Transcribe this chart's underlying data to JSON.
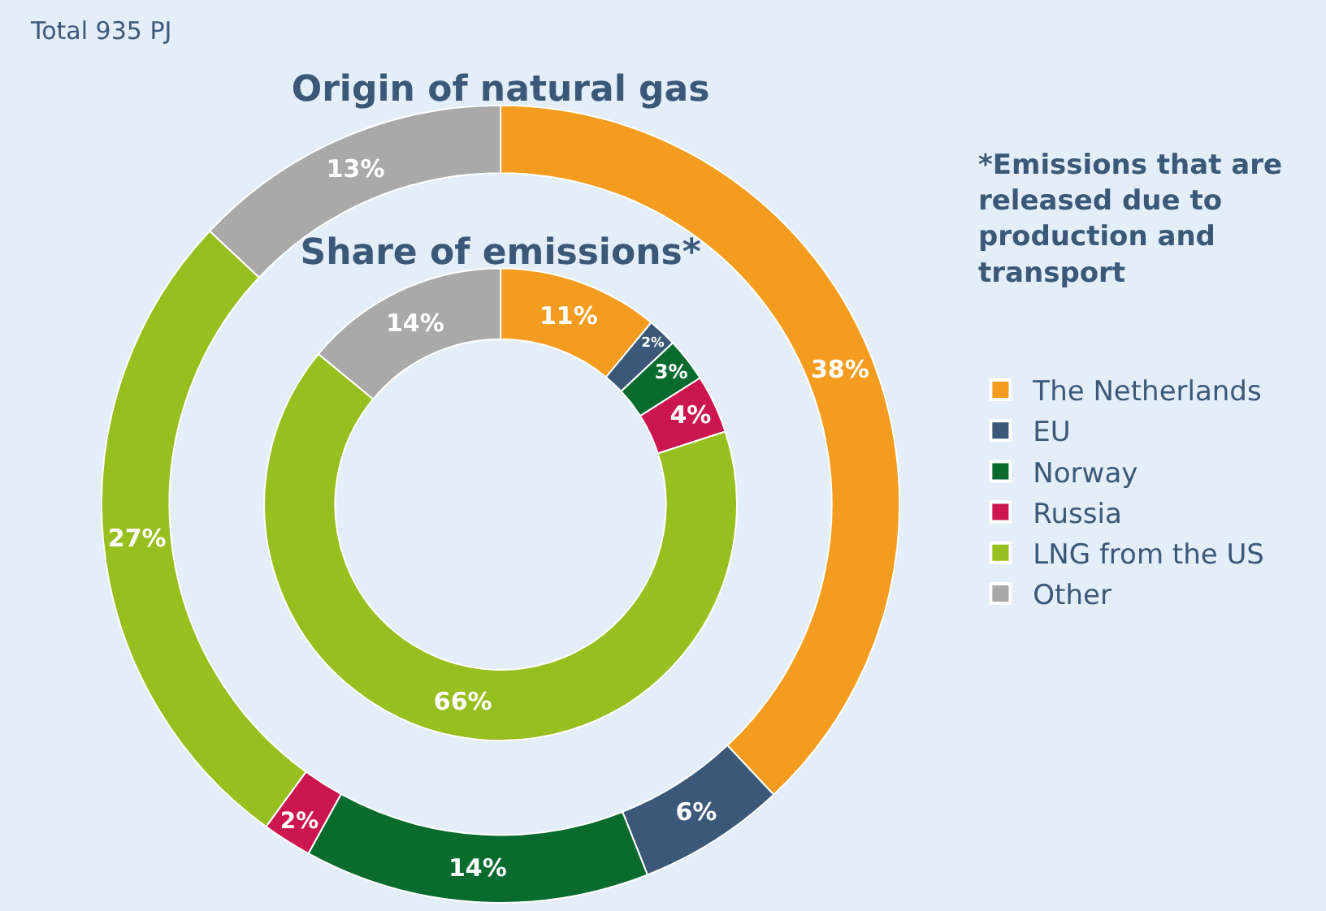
{
  "chart_data": {
    "type": "donut",
    "categories": [
      "The Netherlands",
      "EU",
      "Norway",
      "Russia",
      "LNG from the US",
      "Other"
    ],
    "colors": [
      "#f39c1f",
      "#3b5878",
      "#0a6b2e",
      "#cc1650",
      "#97bf1f",
      "#a9a9a9"
    ],
    "series": [
      {
        "name": "Origin of natural gas",
        "values": [
          38,
          6,
          14,
          2,
          27,
          13
        ],
        "value_labels": [
          "38%",
          "6%",
          "14%",
          "2%",
          "27%",
          "13%"
        ]
      },
      {
        "name": "Share of emissions*",
        "values": [
          11,
          2,
          3,
          4,
          66,
          14
        ],
        "value_labels": [
          "11%",
          "2%",
          "3%",
          "4%",
          "66%",
          "14%"
        ]
      }
    ],
    "legend": "right",
    "annotations": [
      "Total 935 PJ",
      "*Emissions that are released due to production and transport"
    ]
  }
}
